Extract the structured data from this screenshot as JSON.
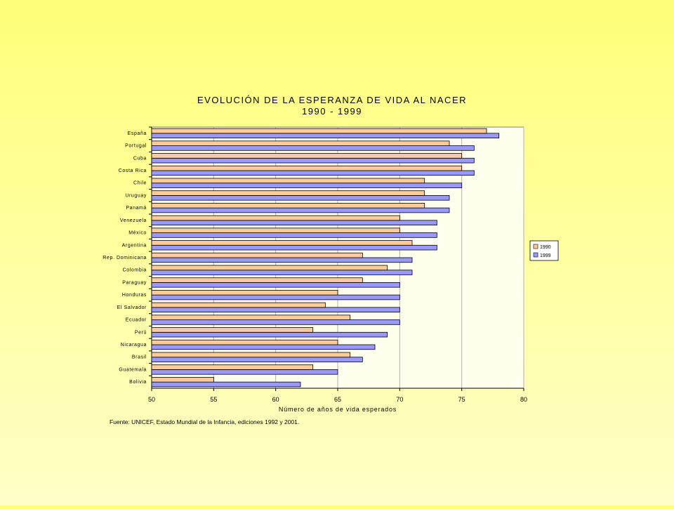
{
  "chart_data": {
    "type": "bar",
    "orientation": "horizontal",
    "title": [
      "EVOLUCIÓN DE LA ESPERANZA DE VIDA AL NACER",
      "1990 - 1999"
    ],
    "xlabel": "Número de años de vida esperados",
    "ylabel": "",
    "xlim": [
      50,
      80
    ],
    "xticks": [
      50,
      55,
      60,
      65,
      70,
      75,
      80
    ],
    "grid": true,
    "legend_position": "right",
    "categories": [
      "España",
      "Portugal",
      "Cuba",
      "Costa Rica",
      "Chile",
      "Uruguay",
      "Panamá",
      "Venezuela",
      "México",
      "Argentina",
      "Rep. Dominicana",
      "Colombia",
      "Paraguay",
      "Honduras",
      "El Salvador",
      "Ecuador",
      "Perú",
      "Nicaragua",
      "Brasil",
      "Guatemala",
      "Bolivia"
    ],
    "series": [
      {
        "name": "1990",
        "color": "#ffcc99",
        "values": [
          77,
          74,
          75,
          75,
          72,
          72,
          72,
          70,
          70,
          71,
          67,
          69,
          67,
          65,
          64,
          66,
          63,
          65,
          66,
          63,
          55
        ]
      },
      {
        "name": "1999",
        "color": "#9999ff",
        "values": [
          78,
          76,
          76,
          76,
          75,
          74,
          74,
          73,
          73,
          73,
          71,
          71,
          70,
          70,
          70,
          70,
          69,
          68,
          67,
          65,
          62
        ]
      }
    ],
    "plot_background": "#ffffee"
  },
  "footer": {
    "source": "Fuente: UNICEF, Estado Mundial de la Infancia, ediciones 1992 y 2001."
  }
}
